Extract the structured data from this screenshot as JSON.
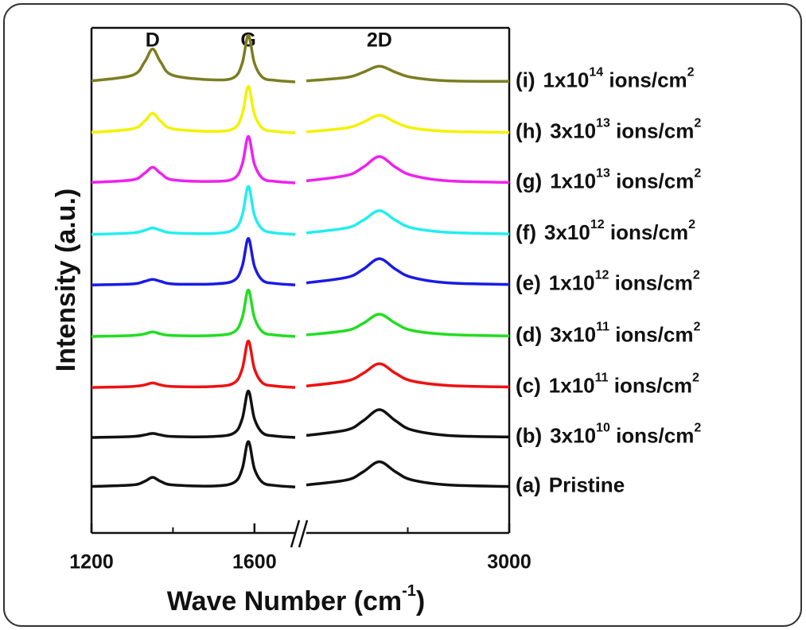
{
  "chart_data": {
    "type": "line",
    "y_label": "Intensity (a.u.)",
    "x_label_parts": [
      "Wave Number (cm",
      "-1",
      ")"
    ],
    "ylim": [
      0,
      10
    ],
    "x_segments": [
      {
        "xlim": [
          1200,
          1700
        ],
        "xticks": [
          1200,
          1600
        ],
        "minor_xticks": [
          1400
        ]
      },
      {
        "xlim": [
          2500,
          3000
        ],
        "xticks": [
          3000
        ],
        "minor_xticks": [
          2750
        ]
      }
    ],
    "annotations": [
      {
        "text": "D",
        "x": 1350
      },
      {
        "text": "G",
        "x": 1585
      },
      {
        "text": "2D",
        "x": 2680
      }
    ],
    "x": [
      1200,
      1300,
      1330,
      1350,
      1370,
      1400,
      1500,
      1550,
      1570,
      1585,
      1600,
      1620,
      1650,
      1700,
      2500,
      2600,
      2640,
      2680,
      2720,
      2760,
      2850,
      3000
    ],
    "series": [
      {
        "name": "(a)",
        "label_parts": [
          "Pristine"
        ],
        "color": "#111111",
        "values": [
          0.92,
          0.95,
          1.02,
          1.1,
          1.02,
          0.95,
          0.93,
          1.0,
          1.27,
          1.81,
          1.27,
          1.0,
          0.94,
          0.91,
          0.95,
          1.05,
          1.21,
          1.41,
          1.21,
          1.05,
          0.95,
          0.92
        ]
      },
      {
        "name": "(b)",
        "label_parts": [
          "3x10",
          "10",
          " ions/cm",
          "2"
        ],
        "color": "#111111",
        "values": [
          1.89,
          1.91,
          1.94,
          1.97,
          1.94,
          1.91,
          1.91,
          1.98,
          2.26,
          2.81,
          2.26,
          1.98,
          1.92,
          1.89,
          1.93,
          2.04,
          2.22,
          2.44,
          2.22,
          2.04,
          1.93,
          1.9
        ]
      },
      {
        "name": "(c)",
        "label_parts": [
          "1x10",
          "11",
          " ions/cm",
          "2"
        ],
        "color": "#ee1111",
        "values": [
          2.88,
          2.9,
          2.93,
          2.97,
          2.93,
          2.9,
          2.9,
          2.97,
          3.25,
          3.8,
          3.25,
          2.97,
          2.91,
          2.88,
          2.91,
          3.01,
          3.16,
          3.35,
          3.16,
          3.01,
          2.92,
          2.89
        ]
      },
      {
        "name": "(d)",
        "label_parts": [
          "3x10",
          "11",
          " ions/cm",
          "2"
        ],
        "color": "#22dd22",
        "values": [
          3.89,
          3.91,
          3.94,
          3.98,
          3.94,
          3.91,
          3.91,
          3.98,
          4.26,
          4.81,
          4.26,
          3.98,
          3.92,
          3.89,
          3.92,
          4.01,
          4.15,
          4.33,
          4.15,
          4.01,
          3.93,
          3.9
        ]
      },
      {
        "name": "(e)",
        "label_parts": [
          "1x10",
          "12",
          " ions/cm",
          "2"
        ],
        "color": "#1a1ae6",
        "values": [
          4.91,
          4.93,
          4.98,
          5.02,
          4.98,
          4.93,
          4.93,
          5.0,
          5.28,
          5.83,
          5.28,
          5.0,
          4.94,
          4.91,
          4.95,
          5.06,
          5.22,
          5.43,
          5.22,
          5.06,
          4.95,
          4.92
        ]
      },
      {
        "name": "(f)",
        "label_parts": [
          "3x10",
          "12",
          "  ions/cm",
          "2"
        ],
        "color": "#22eeee",
        "values": [
          5.91,
          5.94,
          5.99,
          6.04,
          5.99,
          5.94,
          5.93,
          6.01,
          6.29,
          6.86,
          6.29,
          6.01,
          5.94,
          5.91,
          5.94,
          6.04,
          6.19,
          6.38,
          6.19,
          6.04,
          5.95,
          5.92
        ]
      },
      {
        "name": "(g)",
        "label_parts": [
          "1x10",
          "13",
          " ions/cm",
          "2"
        ],
        "color": "#ee22ee",
        "values": [
          6.94,
          6.99,
          7.12,
          7.24,
          7.12,
          6.99,
          6.96,
          7.02,
          7.3,
          7.85,
          7.3,
          7.02,
          6.96,
          6.93,
          6.97,
          7.08,
          7.24,
          7.45,
          7.24,
          7.08,
          6.97,
          6.94
        ]
      },
      {
        "name": "(h)",
        "label_parts": [
          "3x10",
          "13",
          " ions/cm",
          "2"
        ],
        "color": "#f2f200",
        "values": [
          7.93,
          8.0,
          8.15,
          8.31,
          8.15,
          8.0,
          7.95,
          8.01,
          8.29,
          8.84,
          8.29,
          8.01,
          7.95,
          7.92,
          7.94,
          8.02,
          8.13,
          8.27,
          8.13,
          8.02,
          7.95,
          7.93
        ]
      },
      {
        "name": "(i)",
        "label_parts": [
          "1x10",
          "14",
          "  ions/cm",
          "2"
        ],
        "color": "#7d7d22",
        "values": [
          8.95,
          9.06,
          9.32,
          9.58,
          9.32,
          9.06,
          8.97,
          9.02,
          9.3,
          9.85,
          9.3,
          9.02,
          8.96,
          8.93,
          8.95,
          9.02,
          9.12,
          9.24,
          9.12,
          9.02,
          8.95,
          8.94
        ]
      }
    ]
  }
}
